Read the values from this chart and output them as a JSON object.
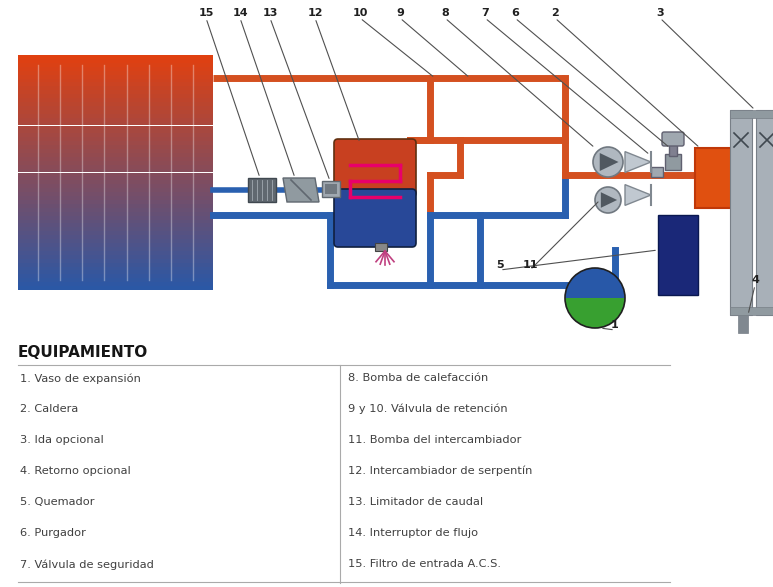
{
  "bg_color": "#ffffff",
  "diagram": {
    "boiler_grad_top": "#e04010",
    "boiler_grad_bot": "#2858a8",
    "pipe_hot": "#d45020",
    "pipe_cold": "#2a60b0",
    "rad_color": "#a8b0b8",
    "rad_edge": "#787f87",
    "burner_color": "#e05010",
    "tank_color": "#1a2878"
  },
  "equipment_title": "EQUIPAMIENTO",
  "left_items": [
    "1. Vaso de expansión",
    "2. Caldera",
    "3. Ida opcional",
    "4. Retorno opcional",
    "5. Quemador",
    "6. Purgador",
    "7. Válvula de seguridad"
  ],
  "right_items": [
    "8. Bomba de calefacción",
    "9 y 10. Válvula de retención",
    "11. Bomba del intercambiador",
    "12. Intercambiador de serpentín",
    "13. Limitador de caudal",
    "14. Interruptor de flujo",
    "15. Filtro de entrada A.C.S."
  ]
}
